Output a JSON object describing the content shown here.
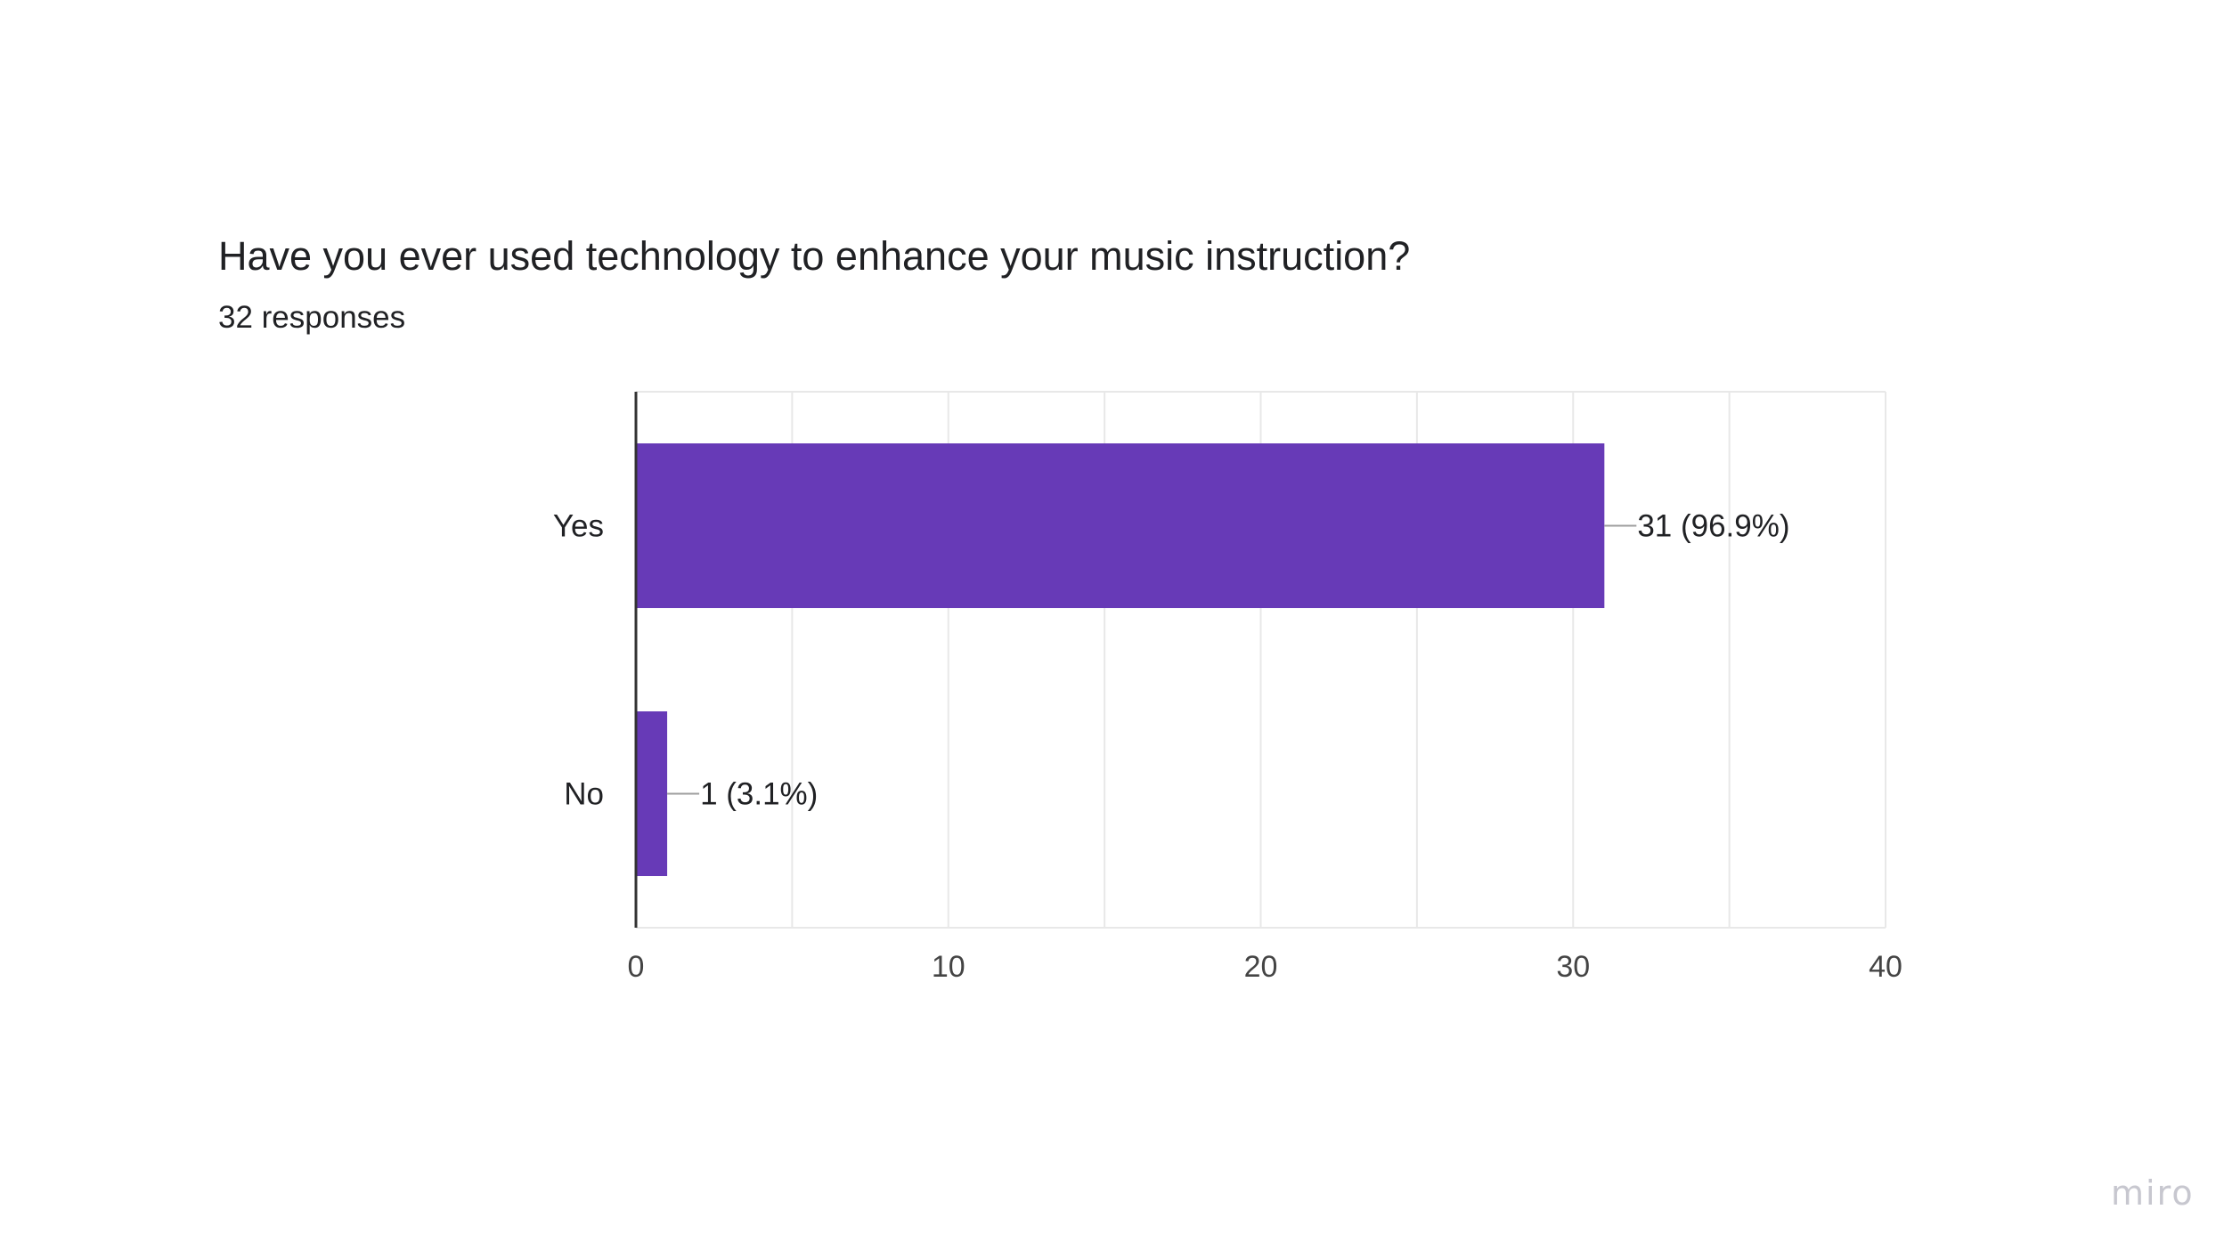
{
  "form": {
    "question": "Have you ever used technology to enhance your music instruction?",
    "responses": "32 responses"
  },
  "watermark": {
    "text": "miro"
  },
  "colors": {
    "bar": "#673AB7",
    "grid": "#e8e8e8",
    "axis": "#333333",
    "text": "#202124"
  },
  "chart_data": {
    "type": "bar",
    "orientation": "horizontal",
    "title": "Have you ever used technology to enhance your music instruction?",
    "subtitle": "32 responses",
    "categories": [
      "Yes",
      "No"
    ],
    "values": [
      31,
      1
    ],
    "data_labels": [
      "31 (96.9%)",
      "1 (3.1%)"
    ],
    "xlim": [
      0,
      40
    ],
    "x_ticks": [
      0,
      10,
      20,
      30,
      40
    ],
    "grid": true,
    "legend": "none"
  }
}
